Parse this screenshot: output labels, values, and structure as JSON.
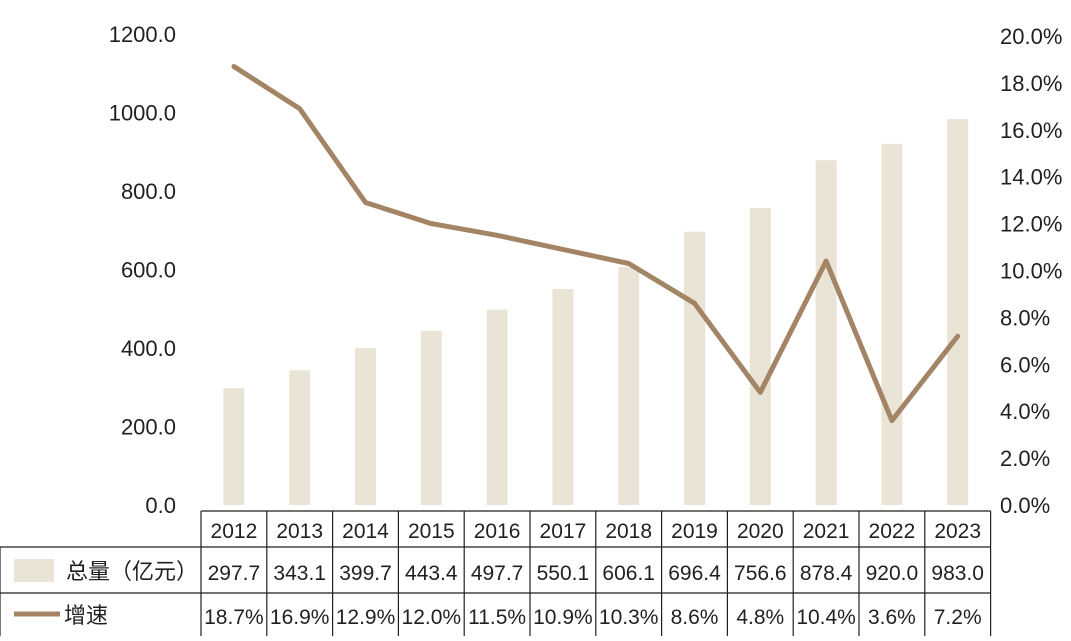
{
  "chart_data": {
    "type": "bar",
    "categories": [
      "2012",
      "2013",
      "2014",
      "2015",
      "2016",
      "2017",
      "2018",
      "2019",
      "2020",
      "2021",
      "2022",
      "2023"
    ],
    "series": [
      {
        "name": "总量（亿元）",
        "kind": "bar",
        "axis": "left",
        "values": [
          297.7,
          343.1,
          399.7,
          443.4,
          497.7,
          550.1,
          606.1,
          696.4,
          756.6,
          878.4,
          920.0,
          983.0
        ],
        "labels": [
          "297.7",
          "343.1",
          "399.7",
          "443.4",
          "497.7",
          "550.1",
          "606.1",
          "696.4",
          "756.6",
          "878.4",
          "920.0",
          "983.0"
        ]
      },
      {
        "name": "增速",
        "kind": "line",
        "axis": "right",
        "values": [
          18.7,
          16.9,
          12.9,
          12.0,
          11.5,
          10.9,
          10.3,
          8.6,
          4.8,
          10.4,
          3.6,
          7.2
        ],
        "labels": [
          "18.7%",
          "16.9%",
          "12.9%",
          "12.0%",
          "11.5%",
          "10.9%",
          "10.3%",
          "8.6%",
          "4.8%",
          "10.4%",
          "3.6%",
          "7.2%"
        ]
      }
    ],
    "y_left": {
      "ylim": [
        0,
        1200
      ],
      "ticks": [
        0,
        200,
        400,
        600,
        800,
        1000,
        1200
      ],
      "tick_labels": [
        "0.0",
        "200.0",
        "400.0",
        "600.0",
        "800.0",
        "1000.0",
        "1200.0"
      ]
    },
    "y_right": {
      "ylim": [
        0,
        20
      ],
      "ticks": [
        0,
        2,
        4,
        6,
        8,
        10,
        12,
        14,
        16,
        18,
        20
      ],
      "tick_labels": [
        "0.0%",
        "2.0%",
        "4.0%",
        "6.0%",
        "8.0%",
        "10.0%",
        "12.0%",
        "14.0%",
        "16.0%",
        "18.0%",
        "20.0%"
      ]
    },
    "grid": false,
    "legend": "data-table-left",
    "colors": {
      "bar": "#e9e4d6",
      "line": "#a38565",
      "text": "#231f20",
      "table_line": "#231f20"
    }
  }
}
